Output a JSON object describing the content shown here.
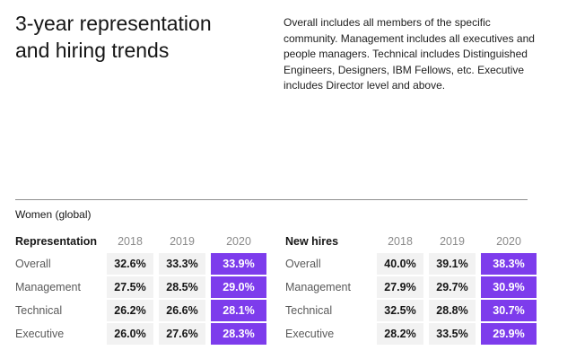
{
  "page": {
    "title_line1": "3-year representation",
    "title_line2": "and hiring trends",
    "description": "Overall includes all members of the specific community. Management includes all executives and people managers. Technical includes Distinguished Engineers, Designers, IBM Fellows, etc. Executive includes Director level and above.",
    "section_label": "Women (global)"
  },
  "colors": {
    "highlight_purple": "#7d3cec",
    "cell_gray": "#f2f2f2",
    "text_dark": "#161616",
    "text_gray": "#8a8a8a"
  },
  "tables": [
    {
      "header": "Representation",
      "years": [
        "2018",
        "2019",
        "2020"
      ],
      "highlight_year": "2020",
      "rows": [
        {
          "label": "Overall",
          "values": [
            "32.6%",
            "33.3%",
            "33.9%"
          ]
        },
        {
          "label": "Management",
          "values": [
            "27.5%",
            "28.5%",
            "29.0%"
          ]
        },
        {
          "label": "Technical",
          "values": [
            "26.2%",
            "26.6%",
            "28.1%"
          ]
        },
        {
          "label": "Executive",
          "values": [
            "26.0%",
            "27.6%",
            "28.3%"
          ]
        }
      ]
    },
    {
      "header": "New hires",
      "years": [
        "2018",
        "2019",
        "2020"
      ],
      "highlight_year": "2020",
      "rows": [
        {
          "label": "Overall",
          "values": [
            "40.0%",
            "39.1%",
            "38.3%"
          ]
        },
        {
          "label": "Management",
          "values": [
            "27.9%",
            "29.7%",
            "30.9%"
          ]
        },
        {
          "label": "Technical",
          "values": [
            "32.5%",
            "28.8%",
            "30.7%"
          ]
        },
        {
          "label": "Executive",
          "values": [
            "28.2%",
            "33.5%",
            "29.9%"
          ]
        }
      ]
    }
  ]
}
